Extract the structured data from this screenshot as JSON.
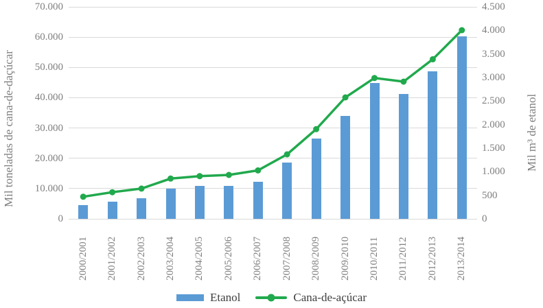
{
  "chart_data": {
    "type": "combo-bar-line",
    "categories": [
      "2000/2001",
      "2001/2002",
      "2002/2003",
      "2003/2004",
      "2004/2005",
      "2005/2006",
      "2006/2007",
      "2007/2008",
      "2008/2009",
      "2009/2010",
      "2010/2011",
      "2011/2012",
      "2012/2013",
      "2013/2014"
    ],
    "series": [
      {
        "name": "Etanol",
        "type": "bar",
        "axis": "right",
        "color": "#5B9BD5",
        "values": [
          290,
          370,
          440,
          640,
          700,
          700,
          790,
          1190,
          1700,
          2180,
          2890,
          2650,
          3130,
          3870
        ]
      },
      {
        "name": "Cana-de-açúcar",
        "type": "line",
        "axis": "left",
        "color": "#21A94D",
        "values": [
          7300,
          8800,
          10000,
          13300,
          14100,
          14500,
          16000,
          21300,
          29600,
          40100,
          46500,
          45300,
          52700,
          62300
        ]
      }
    ],
    "left_axis": {
      "title": "Mil toneladas de cana-de-daçúcar",
      "min": 0,
      "max": 70000,
      "step": 10000,
      "tick_labels": [
        "0",
        "10.000",
        "20.000",
        "30.000",
        "40.000",
        "50.000",
        "60.000",
        "70.000"
      ]
    },
    "right_axis": {
      "title": "Mil m³ de etanol",
      "min": 0,
      "max": 4500,
      "step": 500,
      "tick_labels": [
        "0",
        "500",
        "1.000",
        "1.500",
        "2.000",
        "2.500",
        "3.000",
        "3.500",
        "4.000",
        "4.500"
      ]
    },
    "grid": true,
    "legend_position": "bottom",
    "legend": [
      {
        "label": "Etanol",
        "swatch": "bar"
      },
      {
        "label": "Cana-de-açúcar",
        "swatch": "line"
      }
    ],
    "colors": {
      "background": "#FFFFFF",
      "grid": "#D9D9D9",
      "tick_text": "#7F7F7F",
      "axis_title_text": "#7F7F7F",
      "legend_text": "#3F3F3F"
    }
  }
}
